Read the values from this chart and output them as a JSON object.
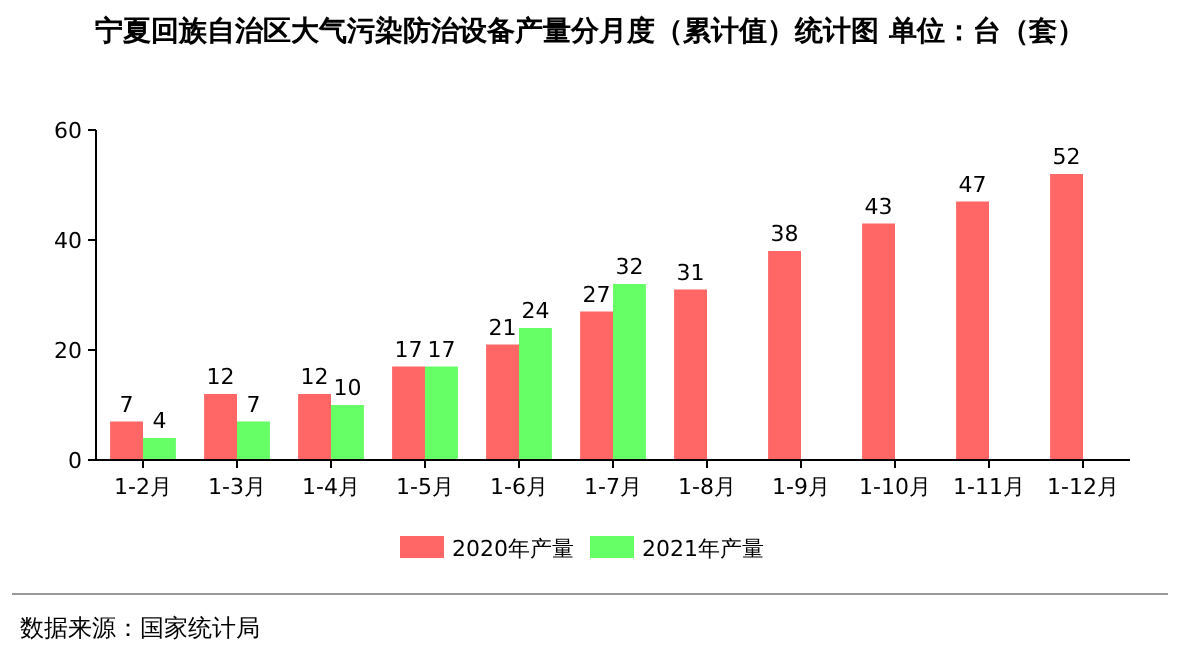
{
  "chart_data": {
    "type": "bar",
    "title": "宁夏回族自治区大气污染防治设备产量分月度（累计值）统计图 单位：台（套）",
    "categories": [
      "1-2月",
      "1-3月",
      "1-4月",
      "1-5月",
      "1-6月",
      "1-7月",
      "1-8月",
      "1-9月",
      "1-10月",
      "1-11月",
      "1-12月"
    ],
    "series": [
      {
        "name": "2020年产量",
        "color": "#ff6666",
        "values": [
          7,
          12,
          12,
          17,
          21,
          27,
          31,
          38,
          43,
          47,
          52
        ]
      },
      {
        "name": "2021年产量",
        "color": "#66ff66",
        "values": [
          4,
          7,
          10,
          17,
          24,
          32,
          null,
          null,
          null,
          null,
          null
        ]
      }
    ],
    "ylim": [
      0,
      60
    ],
    "yticks": [
      0,
      20,
      40,
      60
    ],
    "data_labels": true,
    "legend": "bottom",
    "annotations": [
      "数据来源：国家统计局"
    ]
  }
}
